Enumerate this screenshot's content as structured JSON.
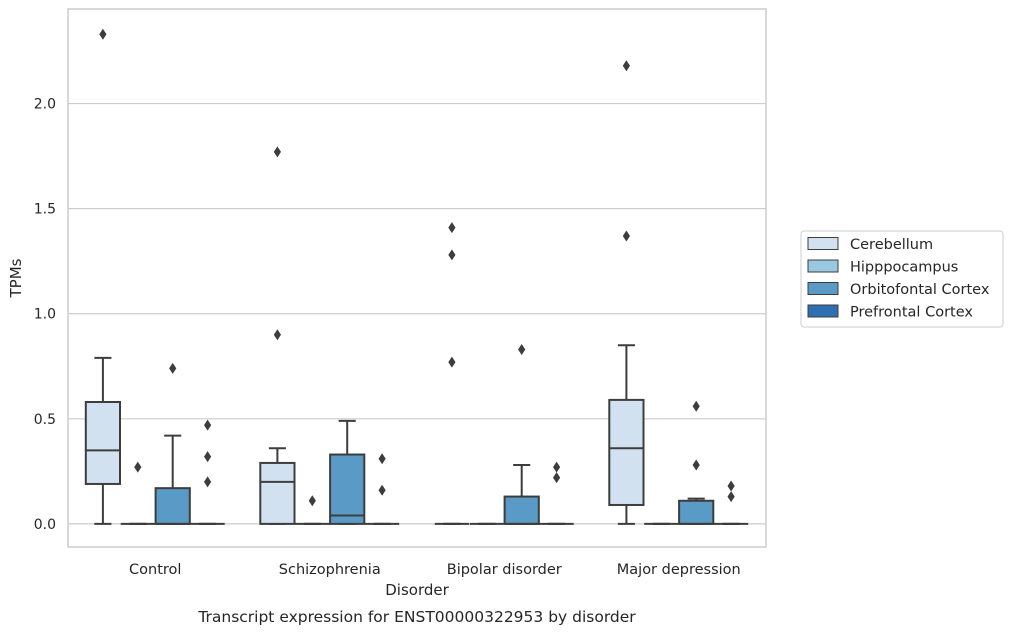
{
  "chart_data": {
    "type": "box",
    "title": "",
    "caption": "Transcript expression for ENST00000322953 by disorder",
    "xlabel": "Disorder",
    "ylabel": "TPMs",
    "ylim": [
      -0.11,
      2.45
    ],
    "yticks": [
      0.0,
      0.5,
      1.0,
      1.5,
      2.0
    ],
    "ytick_labels": [
      "0.0",
      "0.5",
      "1.0",
      "1.5",
      "2.0"
    ],
    "grid": "horizontal",
    "legend_position": "right",
    "categories": [
      "Control",
      "Schizophrenia",
      "Bipolar disorder",
      "Major depression"
    ],
    "series": [
      {
        "name": "Cerebellum",
        "color": "#d2e1f0",
        "boxes": [
          {
            "whislo": 0.0,
            "q1": 0.19,
            "med": 0.35,
            "q3": 0.58,
            "whishi": 0.79,
            "fliers": [
              2.33
            ]
          },
          {
            "whislo": 0.0,
            "q1": 0.0,
            "med": 0.2,
            "q3": 0.29,
            "whishi": 0.36,
            "fliers": [
              0.9,
              1.77
            ]
          },
          {
            "whislo": 0.0,
            "q1": 0.0,
            "med": 0.0,
            "q3": 0.0,
            "whishi": 0.0,
            "fliers": [
              0.77,
              1.28,
              1.41
            ]
          },
          {
            "whislo": 0.0,
            "q1": 0.09,
            "med": 0.36,
            "q3": 0.59,
            "whishi": 0.85,
            "fliers": [
              1.37,
              2.18
            ]
          }
        ]
      },
      {
        "name": "Hipppocampus",
        "color": "#9ac8e0",
        "boxes": [
          {
            "whislo": 0.0,
            "q1": 0.0,
            "med": 0.0,
            "q3": 0.0,
            "whishi": 0.0,
            "fliers": [
              0.27
            ]
          },
          {
            "whislo": 0.0,
            "q1": 0.0,
            "med": 0.0,
            "q3": 0.0,
            "whishi": 0.0,
            "fliers": [
              0.11
            ]
          },
          {
            "whislo": 0.0,
            "q1": 0.0,
            "med": 0.0,
            "q3": 0.0,
            "whishi": 0.0,
            "fliers": []
          },
          {
            "whislo": 0.0,
            "q1": 0.0,
            "med": 0.0,
            "q3": 0.0,
            "whishi": 0.0,
            "fliers": []
          }
        ]
      },
      {
        "name": "Orbitofontal Cortex",
        "color": "#5a9ac6",
        "boxes": [
          {
            "whislo": 0.0,
            "q1": 0.0,
            "med": 0.0,
            "q3": 0.17,
            "whishi": 0.42,
            "fliers": [
              0.74
            ]
          },
          {
            "whislo": 0.0,
            "q1": 0.0,
            "med": 0.04,
            "q3": 0.33,
            "whishi": 0.49,
            "fliers": []
          },
          {
            "whislo": 0.0,
            "q1": 0.0,
            "med": 0.0,
            "q3": 0.13,
            "whishi": 0.28,
            "fliers": [
              0.83
            ]
          },
          {
            "whislo": 0.0,
            "q1": 0.0,
            "med": 0.0,
            "q3": 0.11,
            "whishi": 0.12,
            "fliers": [
              0.28,
              0.56
            ]
          }
        ]
      },
      {
        "name": "Prefrontal Cortex",
        "color": "#2d6fb0",
        "boxes": [
          {
            "whislo": 0.0,
            "q1": 0.0,
            "med": 0.0,
            "q3": 0.0,
            "whishi": 0.0,
            "fliers": [
              0.2,
              0.32,
              0.47
            ]
          },
          {
            "whislo": 0.0,
            "q1": 0.0,
            "med": 0.0,
            "q3": 0.0,
            "whishi": 0.0,
            "fliers": [
              0.16,
              0.31
            ]
          },
          {
            "whislo": 0.0,
            "q1": 0.0,
            "med": 0.0,
            "q3": 0.0,
            "whishi": 0.0,
            "fliers": [
              0.22,
              0.27
            ]
          },
          {
            "whislo": 0.0,
            "q1": 0.0,
            "med": 0.0,
            "q3": 0.0,
            "whishi": 0.0,
            "fliers": [
              0.13,
              0.18
            ]
          }
        ]
      }
    ]
  }
}
